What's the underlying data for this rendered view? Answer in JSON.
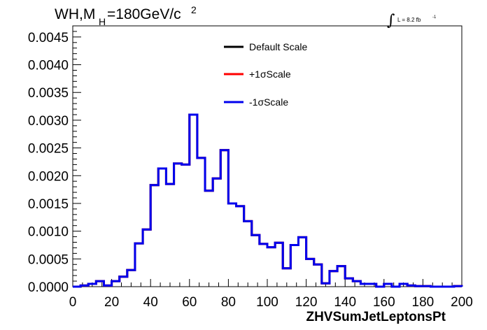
{
  "chart_data": {
    "type": "line",
    "title_main": "WH,M",
    "title_sub": "H",
    "title_rest": "=180GeV/c",
    "title_sup": "2",
    "lumi_label": "L = 8.2 fb",
    "lumi_sup": "-1",
    "xlabel": "ZHVSumJetLeptonsPt",
    "ylabel": "",
    "xlim": [
      0,
      200
    ],
    "ylim": [
      0,
      0.0047
    ],
    "x_ticks": [
      "0",
      "20",
      "40",
      "60",
      "80",
      "100",
      "120",
      "140",
      "160",
      "180",
      "200"
    ],
    "y_ticks": [
      "0.0000",
      "0.0005",
      "0.0010",
      "0.0015",
      "0.0020",
      "0.0025",
      "0.0030",
      "0.0035",
      "0.0040",
      "0.0045"
    ],
    "bin_edges": [
      0,
      4,
      8,
      12,
      16,
      20,
      24,
      28,
      32,
      36,
      40,
      44,
      48,
      52,
      56,
      60,
      64,
      68,
      72,
      76,
      80,
      84,
      88,
      92,
      96,
      100,
      104,
      108,
      112,
      116,
      120,
      124,
      128,
      132,
      136,
      140,
      144,
      148,
      152,
      156,
      160,
      164,
      168,
      172,
      176,
      180,
      184,
      188,
      192,
      196,
      200
    ],
    "series": [
      {
        "name": "Default Scale",
        "color": "#000000",
        "values": [
          0,
          2e-05,
          5e-05,
          0.0001,
          2e-05,
          0.0001,
          0.00018,
          0.0003,
          0.00078,
          0.00103,
          0.00183,
          0.00213,
          0.00185,
          0.00222,
          0.0022,
          0.0031,
          0.00232,
          0.00173,
          0.00195,
          0.00246,
          0.0015,
          0.00145,
          0.00118,
          0.00093,
          0.00077,
          0.00071,
          0.00079,
          0.00033,
          0.00075,
          0.00089,
          0.0005,
          0.0004,
          6e-05,
          0.00028,
          0.00037,
          0.00015,
          0.0001,
          5e-05,
          5e-05,
          0.0,
          5e-05,
          0.0,
          5e-05,
          2e-05,
          1e-05,
          1e-05,
          0.0,
          0.0,
          0.0,
          1e-05
        ]
      },
      {
        "name": "+1σScale",
        "color": "#ff0000",
        "values": [
          0,
          2e-05,
          5e-05,
          0.0001,
          2e-05,
          0.0001,
          0.00018,
          0.0003,
          0.00078,
          0.00103,
          0.00183,
          0.00213,
          0.00185,
          0.00222,
          0.0022,
          0.0031,
          0.00232,
          0.00173,
          0.00195,
          0.00246,
          0.0015,
          0.00145,
          0.00118,
          0.00093,
          0.00077,
          0.00071,
          0.00079,
          0.00033,
          0.00075,
          0.00089,
          0.0005,
          0.0004,
          6e-05,
          0.00028,
          0.00037,
          0.00015,
          0.0001,
          5e-05,
          5e-05,
          0.0,
          5e-05,
          0.0,
          5e-05,
          2e-05,
          1e-05,
          1e-05,
          0.0,
          0.0,
          0.0,
          1e-05
        ]
      },
      {
        "name": "-1σScale",
        "color": "#0000ee",
        "values": [
          0,
          2e-05,
          5e-05,
          0.0001,
          2e-05,
          0.0001,
          0.00018,
          0.0003,
          0.00078,
          0.00103,
          0.00183,
          0.00213,
          0.00185,
          0.00222,
          0.0022,
          0.0031,
          0.00232,
          0.00173,
          0.00195,
          0.00246,
          0.0015,
          0.00145,
          0.00118,
          0.00093,
          0.00077,
          0.00071,
          0.00079,
          0.00033,
          0.00075,
          0.00089,
          0.0005,
          0.0004,
          6e-05,
          0.00028,
          0.00037,
          0.00015,
          0.0001,
          5e-05,
          5e-05,
          0.0,
          5e-05,
          0.0,
          5e-05,
          2e-05,
          1e-05,
          1e-05,
          0.0,
          0.0,
          0.0,
          1e-05
        ]
      }
    ],
    "grid": false,
    "legend_position": "top-center"
  }
}
